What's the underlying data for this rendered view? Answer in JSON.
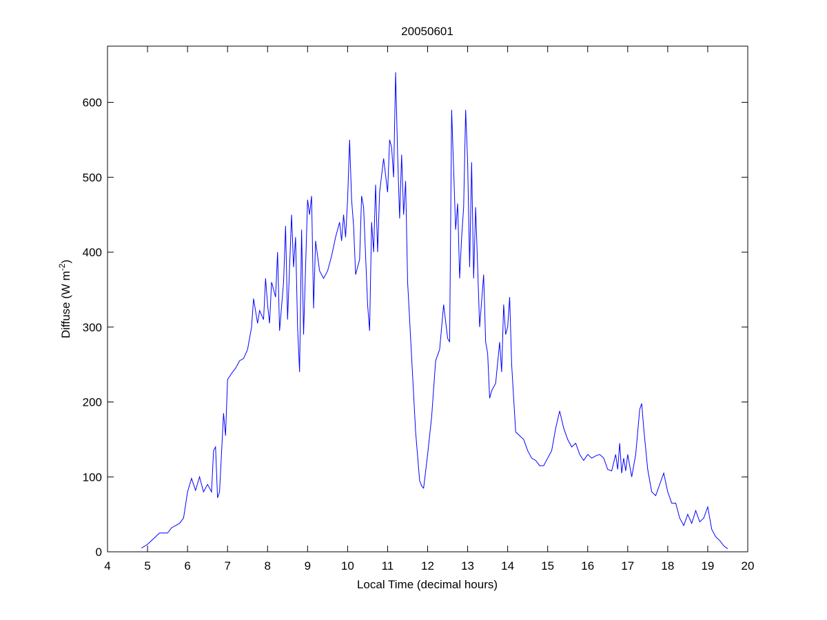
{
  "chart_data": {
    "type": "line",
    "title": "20050601",
    "x_label": "Local Time (decimal hours)",
    "y_label": [
      "Diffuse (W m",
      "-2",
      ")"
    ],
    "xlim": [
      4,
      20
    ],
    "ylim": [
      0,
      675
    ],
    "xticks": [
      4,
      5,
      6,
      7,
      8,
      9,
      10,
      11,
      12,
      13,
      14,
      15,
      16,
      17,
      18,
      19,
      20
    ],
    "yticks": [
      0,
      100,
      200,
      300,
      400,
      500,
      600
    ],
    "grid": false,
    "series": [
      {
        "color": "#0000ff",
        "x": [
          4.85,
          5.0,
          5.2,
          5.3,
          5.5,
          5.6,
          5.7,
          5.8,
          5.9,
          6.0,
          6.1,
          6.2,
          6.3,
          6.4,
          6.5,
          6.6,
          6.65,
          6.7,
          6.75,
          6.8,
          6.9,
          6.95,
          7.0,
          7.1,
          7.2,
          7.3,
          7.4,
          7.5,
          7.6,
          7.65,
          7.75,
          7.8,
          7.9,
          7.95,
          8.0,
          8.05,
          8.1,
          8.2,
          8.25,
          8.3,
          8.4,
          8.45,
          8.5,
          8.6,
          8.65,
          8.7,
          8.75,
          8.8,
          8.85,
          8.9,
          9.0,
          9.05,
          9.1,
          9.15,
          9.2,
          9.3,
          9.4,
          9.5,
          9.6,
          9.7,
          9.8,
          9.85,
          9.9,
          9.95,
          10.0,
          10.05,
          10.1,
          10.15,
          10.2,
          10.3,
          10.35,
          10.4,
          10.5,
          10.55,
          10.6,
          10.65,
          10.7,
          10.75,
          10.8,
          10.9,
          11.0,
          11.05,
          11.1,
          11.15,
          11.2,
          11.25,
          11.3,
          11.35,
          11.4,
          11.45,
          11.5,
          11.6,
          11.7,
          11.8,
          11.85,
          11.9,
          12.0,
          12.1,
          12.2,
          12.3,
          12.4,
          12.5,
          12.55,
          12.6,
          12.7,
          12.75,
          12.8,
          12.85,
          12.9,
          12.95,
          13.0,
          13.05,
          13.1,
          13.15,
          13.2,
          13.3,
          13.4,
          13.45,
          13.5,
          13.55,
          13.6,
          13.7,
          13.8,
          13.85,
          13.9,
          13.95,
          14.0,
          14.05,
          14.1,
          14.2,
          14.3,
          14.4,
          14.5,
          14.6,
          14.7,
          14.8,
          14.9,
          15.0,
          15.1,
          15.2,
          15.3,
          15.4,
          15.5,
          15.6,
          15.7,
          15.8,
          15.9,
          16.0,
          16.1,
          16.2,
          16.3,
          16.4,
          16.5,
          16.6,
          16.7,
          16.75,
          16.8,
          16.85,
          16.9,
          16.95,
          17.0,
          17.1,
          17.2,
          17.3,
          17.35,
          17.4,
          17.5,
          17.6,
          17.7,
          17.8,
          17.9,
          18.0,
          18.1,
          18.2,
          18.3,
          18.4,
          18.5,
          18.6,
          18.7,
          18.8,
          18.9,
          19.0,
          19.1,
          19.2,
          19.3,
          19.4,
          19.5
        ],
        "values": [
          5,
          10,
          20,
          25,
          25,
          32,
          35,
          38,
          45,
          80,
          98,
          82,
          100,
          80,
          90,
          80,
          135,
          140,
          72,
          80,
          185,
          155,
          230,
          238,
          245,
          255,
          258,
          270,
          300,
          338,
          305,
          322,
          310,
          365,
          330,
          305,
          360,
          340,
          400,
          295,
          360,
          435,
          310,
          450,
          380,
          420,
          300,
          240,
          430,
          290,
          470,
          450,
          475,
          325,
          415,
          375,
          365,
          375,
          395,
          420,
          440,
          415,
          450,
          420,
          470,
          550,
          470,
          435,
          370,
          390,
          475,
          460,
          330,
          295,
          440,
          400,
          490,
          400,
          480,
          525,
          480,
          550,
          540,
          500,
          640,
          530,
          445,
          530,
          450,
          495,
          360,
          260,
          160,
          95,
          88,
          85,
          130,
          180,
          255,
          270,
          330,
          285,
          280,
          590,
          430,
          465,
          365,
          420,
          460,
          590,
          520,
          380,
          520,
          365,
          460,
          300,
          370,
          280,
          265,
          205,
          215,
          225,
          280,
          240,
          330,
          290,
          300,
          340,
          250,
          160,
          155,
          150,
          135,
          125,
          122,
          115,
          115,
          125,
          135,
          165,
          188,
          165,
          150,
          140,
          145,
          130,
          122,
          130,
          125,
          128,
          130,
          125,
          110,
          108,
          130,
          110,
          145,
          105,
          125,
          108,
          130,
          100,
          130,
          190,
          198,
          165,
          110,
          80,
          75,
          90,
          105,
          80,
          65,
          65,
          45,
          35,
          50,
          38,
          55,
          40,
          45,
          60,
          30,
          20,
          15,
          8,
          4
        ]
      }
    ]
  }
}
